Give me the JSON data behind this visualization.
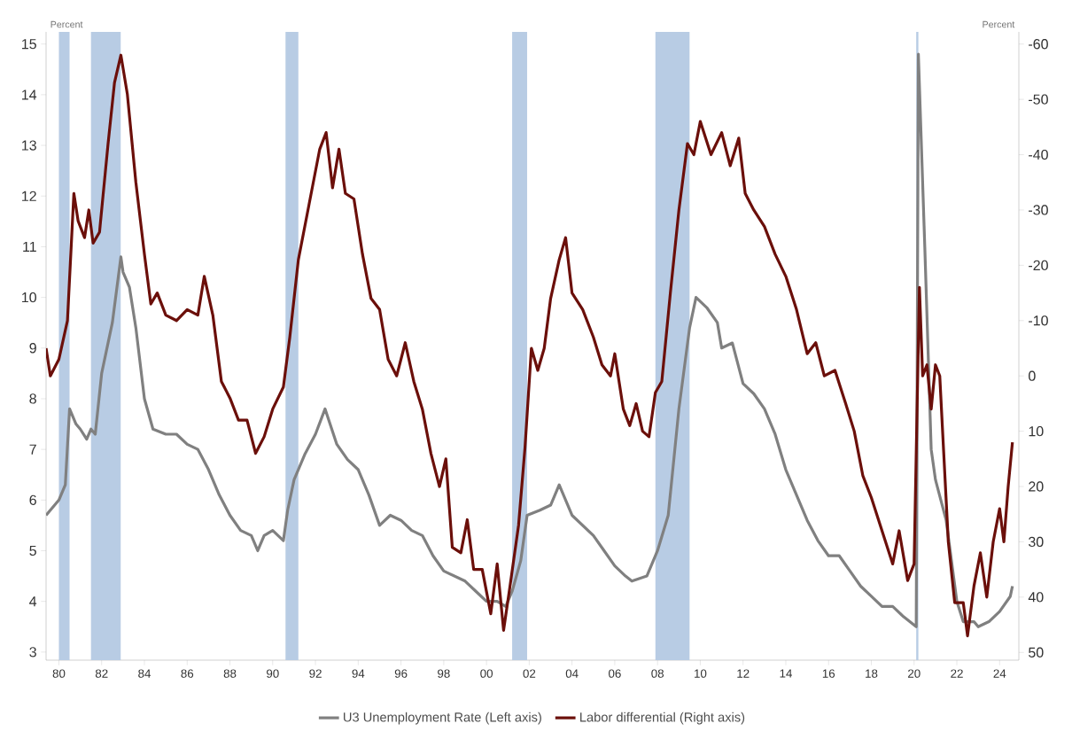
{
  "chart_data": {
    "type": "line",
    "ylabel": "Percent",
    "y2label": "Percent",
    "legend": "bottom",
    "xlim": [
      1979.4,
      2024.9
    ],
    "xticks": [
      {
        "value": 1980,
        "label": "80"
      },
      {
        "value": 1982,
        "label": "82"
      },
      {
        "value": 1984,
        "label": "84"
      },
      {
        "value": 1986,
        "label": "86"
      },
      {
        "value": 1988,
        "label": "88"
      },
      {
        "value": 1990,
        "label": "90"
      },
      {
        "value": 1992,
        "label": "92"
      },
      {
        "value": 1994,
        "label": "94"
      },
      {
        "value": 1996,
        "label": "96"
      },
      {
        "value": 1998,
        "label": "98"
      },
      {
        "value": 2000,
        "label": "00"
      },
      {
        "value": 2002,
        "label": "02"
      },
      {
        "value": 2004,
        "label": "04"
      },
      {
        "value": 2006,
        "label": "06"
      },
      {
        "value": 2008,
        "label": "08"
      },
      {
        "value": 2010,
        "label": "10"
      },
      {
        "value": 2012,
        "label": "12"
      },
      {
        "value": 2014,
        "label": "14"
      },
      {
        "value": 2016,
        "label": "16"
      },
      {
        "value": 2018,
        "label": "18"
      },
      {
        "value": 2020,
        "label": "20"
      },
      {
        "value": 2022,
        "label": "22"
      },
      {
        "value": 2024,
        "label": "24"
      }
    ],
    "ylim": [
      2.84,
      15.24
    ],
    "yticks": [
      3,
      4,
      5,
      6,
      7,
      8,
      9,
      10,
      11,
      12,
      13,
      14,
      15
    ],
    "y2lim": [
      51.4,
      -62.2
    ],
    "y2ticks": [
      -60,
      -50,
      -40,
      -30,
      -20,
      -10,
      0,
      10,
      20,
      30,
      40,
      50
    ],
    "bands": [
      {
        "axis": "x",
        "from": 1980.0,
        "to": 1980.5,
        "color": "#b8cce4"
      },
      {
        "axis": "x",
        "from": 1981.5,
        "to": 1982.9,
        "color": "#b8cce4"
      },
      {
        "axis": "x",
        "from": 1990.6,
        "to": 1991.2,
        "color": "#b8cce4"
      },
      {
        "axis": "x",
        "from": 2001.2,
        "to": 2001.9,
        "color": "#b8cce4"
      },
      {
        "axis": "x",
        "from": 2007.9,
        "to": 2009.5,
        "color": "#b8cce4"
      },
      {
        "axis": "x",
        "from": 2020.1,
        "to": 2020.2,
        "color": "#b8cce4"
      }
    ],
    "series": [
      {
        "name": "U3 Unemployment Rate (Left axis)",
        "color": "#808080",
        "axis": "y",
        "x": [
          1979.4,
          1980.0,
          1980.3,
          1980.5,
          1980.8,
          1981.0,
          1981.3,
          1981.5,
          1981.7,
          1982.0,
          1982.5,
          1982.9,
          1983.0,
          1983.3,
          1983.6,
          1984.0,
          1984.4,
          1985.0,
          1985.5,
          1986.0,
          1986.5,
          1987.0,
          1987.5,
          1988.0,
          1988.5,
          1989.0,
          1989.3,
          1989.6,
          1990.0,
          1990.5,
          1990.7,
          1991.0,
          1991.5,
          1992.0,
          1992.45,
          1993.0,
          1993.5,
          1994.0,
          1994.5,
          1995.0,
          1995.5,
          1996.0,
          1996.5,
          1997.0,
          1997.5,
          1998.0,
          1998.5,
          1999.0,
          1999.5,
          2000.0,
          2000.5,
          2000.9,
          2001.2,
          2001.6,
          2001.9,
          2002.5,
          2003.0,
          2003.4,
          2004.0,
          2004.5,
          2005.0,
          2005.5,
          2006.0,
          2006.5,
          2006.8,
          2007.5,
          2008.0,
          2008.5,
          2009.0,
          2009.5,
          2009.8,
          2010.3,
          2010.8,
          2011.0,
          2011.5,
          2012.0,
          2012.5,
          2013.0,
          2013.5,
          2014.0,
          2014.5,
          2015.0,
          2015.5,
          2016.0,
          2016.5,
          2017.0,
          2017.5,
          2018.0,
          2018.5,
          2019.0,
          2019.5,
          2020.1,
          2020.2,
          2020.5,
          2020.8,
          2021.0,
          2021.5,
          2022.0,
          2022.3,
          2022.8,
          2023.0,
          2023.5,
          2024.0,
          2024.5,
          2024.6
        ],
        "values": [
          5.7,
          6.0,
          6.3,
          7.8,
          7.5,
          7.4,
          7.2,
          7.4,
          7.3,
          8.5,
          9.5,
          10.8,
          10.5,
          10.2,
          9.4,
          8.0,
          7.4,
          7.3,
          7.3,
          7.1,
          7.0,
          6.6,
          6.1,
          5.7,
          5.4,
          5.3,
          5.0,
          5.3,
          5.4,
          5.2,
          5.8,
          6.4,
          6.9,
          7.3,
          7.8,
          7.1,
          6.8,
          6.6,
          6.1,
          5.5,
          5.7,
          5.6,
          5.4,
          5.3,
          4.9,
          4.6,
          4.5,
          4.4,
          4.2,
          4.0,
          4.0,
          3.9,
          4.2,
          4.8,
          5.7,
          5.8,
          5.9,
          6.3,
          5.7,
          5.5,
          5.3,
          5.0,
          4.7,
          4.5,
          4.4,
          4.5,
          5.0,
          5.7,
          7.8,
          9.4,
          10.0,
          9.8,
          9.5,
          9.0,
          9.1,
          8.3,
          8.1,
          7.8,
          7.3,
          6.6,
          6.1,
          5.6,
          5.2,
          4.9,
          4.9,
          4.6,
          4.3,
          4.1,
          3.9,
          3.9,
          3.7,
          3.5,
          14.8,
          11.0,
          7.0,
          6.4,
          5.6,
          4.0,
          3.6,
          3.6,
          3.5,
          3.6,
          3.8,
          4.1,
          4.3
        ]
      },
      {
        "name": "Labor differential (Right axis)",
        "color": "#6b0f0a",
        "axis": "y2",
        "x": [
          1979.4,
          1979.6,
          1980.0,
          1980.4,
          1980.7,
          1980.9,
          1981.2,
          1981.4,
          1981.6,
          1981.9,
          1982.3,
          1982.6,
          1982.9,
          1983.2,
          1983.6,
          1984.0,
          1984.3,
          1984.6,
          1985.0,
          1985.5,
          1986.0,
          1986.5,
          1986.8,
          1987.2,
          1987.6,
          1988.0,
          1988.4,
          1988.8,
          1989.2,
          1989.6,
          1990.0,
          1990.5,
          1990.8,
          1991.2,
          1991.7,
          1992.2,
          1992.5,
          1992.8,
          1993.1,
          1993.4,
          1993.8,
          1994.2,
          1994.6,
          1995.0,
          1995.4,
          1995.8,
          1996.2,
          1996.6,
          1997.0,
          1997.4,
          1997.8,
          1998.1,
          1998.4,
          1998.8,
          1999.1,
          1999.4,
          1999.8,
          2000.2,
          2000.5,
          2000.8,
          2001.1,
          2001.5,
          2001.8,
          2002.1,
          2002.4,
          2002.7,
          2003.0,
          2003.4,
          2003.7,
          2004.0,
          2004.5,
          2005.0,
          2005.4,
          2005.8,
          2006.0,
          2006.4,
          2006.7,
          2007.0,
          2007.3,
          2007.6,
          2007.9,
          2008.2,
          2008.6,
          2009.0,
          2009.4,
          2009.7,
          2010.0,
          2010.5,
          2011.0,
          2011.4,
          2011.8,
          2012.1,
          2012.5,
          2013.0,
          2013.5,
          2014.0,
          2014.5,
          2015.0,
          2015.4,
          2015.8,
          2016.3,
          2016.8,
          2017.2,
          2017.6,
          2018.0,
          2018.5,
          2019.0,
          2019.3,
          2019.7,
          2020.0,
          2020.25,
          2020.4,
          2020.6,
          2020.8,
          2021.0,
          2021.2,
          2021.6,
          2021.9,
          2022.3,
          2022.5,
          2022.8,
          2023.1,
          2023.4,
          2023.7,
          2024.0,
          2024.2,
          2024.4,
          2024.6
        ],
        "values": [
          -5,
          0,
          -3,
          -10,
          -33,
          -28,
          -25,
          -30,
          -24,
          -26,
          -42,
          -53,
          -58,
          -51,
          -35,
          -22,
          -13,
          -15,
          -11,
          -10,
          -12,
          -11,
          -18,
          -11,
          1,
          4,
          8,
          8,
          14,
          11,
          6,
          2,
          -7,
          -21,
          -31,
          -41,
          -44,
          -34,
          -41,
          -33,
          -32,
          -22,
          -14,
          -12,
          -3,
          0,
          -6,
          1,
          6,
          14,
          20,
          15,
          31,
          32,
          26,
          35,
          35,
          43,
          34,
          46,
          38,
          27,
          13,
          -5,
          -1,
          -5,
          -14,
          -21,
          -25,
          -15,
          -12,
          -7,
          -2,
          0,
          -4,
          6,
          9,
          5,
          10,
          11,
          3,
          1,
          -15,
          -30,
          -42,
          -40,
          -46,
          -40,
          -44,
          -38,
          -43,
          -33,
          -30,
          -27,
          -22,
          -18,
          -12,
          -4,
          -6,
          0,
          -1,
          5,
          10,
          18,
          22,
          28,
          34,
          28,
          37,
          34,
          -16,
          0,
          -2,
          6,
          -2,
          0,
          30,
          41,
          41,
          47,
          38,
          32,
          40,
          30,
          24,
          30,
          20,
          12
        ]
      }
    ]
  }
}
